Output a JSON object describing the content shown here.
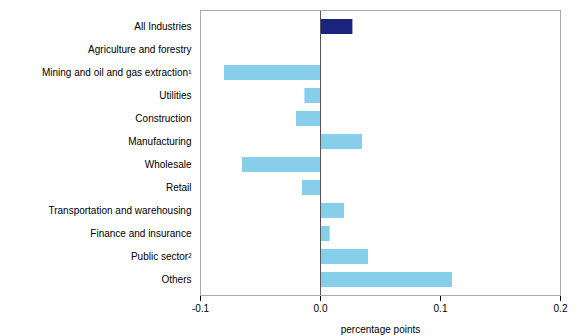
{
  "chart_data": {
    "type": "bar",
    "orientation": "horizontal",
    "categories": [
      "All Industries",
      "Agriculture and forestry",
      "Mining and oil and gas extraction¹",
      "Utilities",
      "Construction",
      "Manufacturing",
      "Wholesale",
      "Retail",
      "Transportation and warehousing",
      "Finance and insurance",
      "Public sector²",
      "Others"
    ],
    "values": [
      0.027,
      0.0,
      -0.08,
      -0.013,
      -0.02,
      0.035,
      -0.065,
      -0.015,
      0.02,
      0.008,
      0.04,
      0.11
    ],
    "colors": [
      "#1a237e",
      "#87CEEB",
      "#87CEEB",
      "#87CEEB",
      "#87CEEB",
      "#87CEEB",
      "#87CEEB",
      "#87CEEB",
      "#87CEEB",
      "#87CEEB",
      "#87CEEB",
      "#87CEEB"
    ],
    "xlabel": "percentage points",
    "xlim": [
      -0.1,
      0.2
    ],
    "xticks": [
      -0.1,
      {
        "value": 0,
        "label": "0.0"
      },
      0.1,
      0.2
    ],
    "grid": false
  }
}
